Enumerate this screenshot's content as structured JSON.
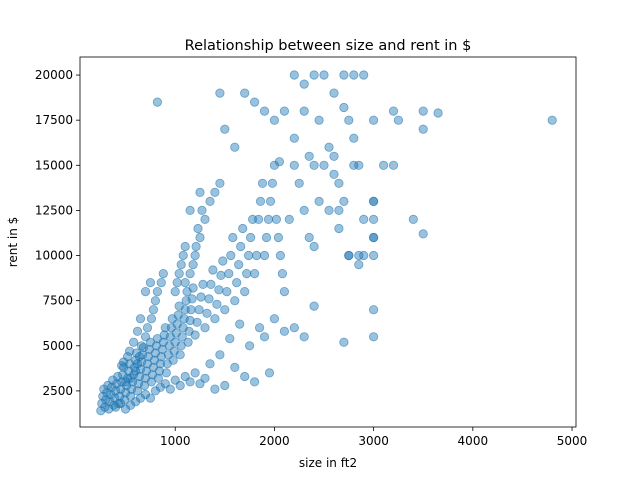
{
  "chart_data": {
    "type": "scatter",
    "title": "Relationship between size and rent in $",
    "xlabel": "size in ft2",
    "ylabel": "rent in $",
    "xlim": [
      40,
      5040
    ],
    "ylim": [
      500,
      21000
    ],
    "xticks": [
      1000,
      2000,
      3000,
      4000,
      5000
    ],
    "yticks": [
      2500,
      5000,
      7500,
      10000,
      12500,
      15000,
      17500,
      20000
    ],
    "grid": false,
    "color": "#1f77b4",
    "alpha": 0.45,
    "series": [
      {
        "points": [
          [
            250,
            1400
          ],
          [
            260,
            1800
          ],
          [
            270,
            2200
          ],
          [
            280,
            2600
          ],
          [
            290,
            1600
          ],
          [
            300,
            2000
          ],
          [
            310,
            2400
          ],
          [
            320,
            2800
          ],
          [
            330,
            1500
          ],
          [
            340,
            1900
          ],
          [
            350,
            2300
          ],
          [
            360,
            2700
          ],
          [
            370,
            3100
          ],
          [
            380,
            1700
          ],
          [
            390,
            2100
          ],
          [
            400,
            2500
          ],
          [
            410,
            2900
          ],
          [
            420,
            3300
          ],
          [
            430,
            1800
          ],
          [
            440,
            2200
          ],
          [
            450,
            2600
          ],
          [
            460,
            3000
          ],
          [
            470,
            3400
          ],
          [
            480,
            3800
          ],
          [
            490,
            2000
          ],
          [
            500,
            2400
          ],
          [
            510,
            2800
          ],
          [
            520,
            3200
          ],
          [
            530,
            3600
          ],
          [
            540,
            4000
          ],
          [
            550,
            2200
          ],
          [
            560,
            2600
          ],
          [
            570,
            3000
          ],
          [
            580,
            3400
          ],
          [
            590,
            3800
          ],
          [
            600,
            4200
          ],
          [
            610,
            4600
          ],
          [
            620,
            2500
          ],
          [
            630,
            2900
          ],
          [
            640,
            3300
          ],
          [
            650,
            3700
          ],
          [
            660,
            4100
          ],
          [
            670,
            4500
          ],
          [
            680,
            4900
          ],
          [
            690,
            2800
          ],
          [
            700,
            3200
          ],
          [
            710,
            3600
          ],
          [
            720,
            4000
          ],
          [
            730,
            4400
          ],
          [
            740,
            4800
          ],
          [
            750,
            5200
          ],
          [
            760,
            3000
          ],
          [
            770,
            3400
          ],
          [
            780,
            3800
          ],
          [
            790,
            4200
          ],
          [
            800,
            4600
          ],
          [
            810,
            5000
          ],
          [
            820,
            5400
          ],
          [
            830,
            3200
          ],
          [
            840,
            3600
          ],
          [
            850,
            4000
          ],
          [
            860,
            4400
          ],
          [
            870,
            4800
          ],
          [
            880,
            5200
          ],
          [
            890,
            5600
          ],
          [
            900,
            6000
          ],
          [
            910,
            3500
          ],
          [
            920,
            4000
          ],
          [
            930,
            4500
          ],
          [
            940,
            5000
          ],
          [
            950,
            5500
          ],
          [
            960,
            6000
          ],
          [
            970,
            6500
          ],
          [
            980,
            4200
          ],
          [
            990,
            4700
          ],
          [
            1000,
            5200
          ],
          [
            1010,
            5700
          ],
          [
            1020,
            6200
          ],
          [
            1030,
            6700
          ],
          [
            1040,
            7200
          ],
          [
            1050,
            4500
          ],
          [
            1060,
            5000
          ],
          [
            1070,
            5500
          ],
          [
            1080,
            6000
          ],
          [
            1090,
            6500
          ],
          [
            1100,
            7000
          ],
          [
            1110,
            7500
          ],
          [
            1120,
            8000
          ],
          [
            1130,
            5200
          ],
          [
            1140,
            5800
          ],
          [
            1150,
            6400
          ],
          [
            1160,
            7000
          ],
          [
            1170,
            7600
          ],
          [
            1180,
            8200
          ],
          [
            1200,
            5600
          ],
          [
            1220,
            6300
          ],
          [
            1240,
            7000
          ],
          [
            1260,
            7700
          ],
          [
            1280,
            8400
          ],
          [
            1300,
            6000
          ],
          [
            1320,
            6800
          ],
          [
            1340,
            7600
          ],
          [
            1360,
            8400
          ],
          [
            1380,
            9200
          ],
          [
            1400,
            6500
          ],
          [
            1420,
            7300
          ],
          [
            1440,
            8100
          ],
          [
            1460,
            8900
          ],
          [
            1480,
            9700
          ],
          [
            1500,
            7000
          ],
          [
            1520,
            8000
          ],
          [
            1540,
            9000
          ],
          [
            1560,
            10000
          ],
          [
            1580,
            11000
          ],
          [
            1600,
            7500
          ],
          [
            1620,
            8500
          ],
          [
            1640,
            9500
          ],
          [
            1660,
            10500
          ],
          [
            1680,
            11500
          ],
          [
            1700,
            8000
          ],
          [
            1720,
            9000
          ],
          [
            1740,
            10000
          ],
          [
            1760,
            11000
          ],
          [
            1780,
            12000
          ],
          [
            1800,
            9000
          ],
          [
            1820,
            10000
          ],
          [
            1840,
            12000
          ],
          [
            1860,
            13000
          ],
          [
            1880,
            14000
          ],
          [
            1900,
            10000
          ],
          [
            1920,
            11000
          ],
          [
            1940,
            12000
          ],
          [
            1960,
            13000
          ],
          [
            1980,
            14000
          ],
          [
            2000,
            15000
          ],
          [
            2020,
            12000
          ],
          [
            2040,
            11000
          ],
          [
            2060,
            10000
          ],
          [
            2080,
            9000
          ],
          [
            2100,
            8000
          ],
          [
            2150,
            12000
          ],
          [
            2200,
            15000
          ],
          [
            2250,
            14000
          ],
          [
            2300,
            12500
          ],
          [
            2350,
            11000
          ],
          [
            2400,
            10500
          ],
          [
            2450,
            13000
          ],
          [
            2500,
            15000
          ],
          [
            2550,
            12500
          ],
          [
            2600,
            14500
          ],
          [
            2650,
            11500
          ],
          [
            2700,
            13000
          ],
          [
            2750,
            10000
          ],
          [
            2800,
            15000
          ],
          [
            2850,
            9500
          ],
          [
            2900,
            10000
          ],
          [
            3000,
            11000
          ],
          [
            3000,
            7000
          ],
          [
            3000,
            5500
          ],
          [
            3000,
            13000
          ],
          [
            1950,
            3500
          ],
          [
            1800,
            3000
          ],
          [
            1700,
            3300
          ],
          [
            1600,
            3800
          ],
          [
            1500,
            2800
          ],
          [
            1400,
            2600
          ],
          [
            1300,
            3200
          ],
          [
            1250,
            2900
          ],
          [
            1350,
            4000
          ],
          [
            1450,
            4500
          ],
          [
            2100,
            5800
          ],
          [
            2200,
            6000
          ],
          [
            2300,
            5500
          ],
          [
            2400,
            7200
          ],
          [
            2000,
            6500
          ],
          [
            1900,
            5500
          ],
          [
            1850,
            6000
          ],
          [
            1750,
            5000
          ],
          [
            1650,
            6200
          ],
          [
            1550,
            5400
          ],
          [
            2700,
            5200
          ],
          [
            2100,
            18000
          ],
          [
            2200,
            20000
          ],
          [
            2300,
            19500
          ],
          [
            2400,
            20000
          ],
          [
            2500,
            20000
          ],
          [
            2600,
            19000
          ],
          [
            2700,
            20000
          ],
          [
            2800,
            20000
          ],
          [
            2900,
            20000
          ],
          [
            820,
            18500
          ],
          [
            1450,
            19000
          ],
          [
            1700,
            19000
          ],
          [
            1800,
            18500
          ],
          [
            1900,
            18000
          ],
          [
            2000,
            17500
          ],
          [
            1500,
            17000
          ],
          [
            1600,
            16000
          ],
          [
            2300,
            18000
          ],
          [
            2700,
            18200
          ],
          [
            2750,
            17500
          ],
          [
            2800,
            16500
          ],
          [
            3000,
            17500
          ],
          [
            3200,
            18000
          ],
          [
            3250,
            17500
          ],
          [
            3500,
            18000
          ],
          [
            3500,
            17000
          ],
          [
            3650,
            17900
          ],
          [
            4800,
            17500
          ],
          [
            2450,
            17500
          ],
          [
            2600,
            15500
          ],
          [
            2400,
            15000
          ],
          [
            3100,
            15000
          ],
          [
            3200,
            15000
          ],
          [
            2850,
            15000
          ],
          [
            2550,
            16000
          ],
          [
            2650,
            14000
          ],
          [
            2350,
            15500
          ],
          [
            2200,
            16500
          ],
          [
            2050,
            15200
          ],
          [
            3000,
            11000
          ],
          [
            3000,
            10000
          ],
          [
            3000,
            12000
          ],
          [
            3400,
            12000
          ],
          [
            3500,
            11200
          ],
          [
            2750,
            10000
          ],
          [
            2850,
            10000
          ],
          [
            2900,
            12000
          ],
          [
            3000,
            13000
          ],
          [
            2650,
            12500
          ],
          [
            400,
            1600
          ],
          [
            450,
            1800
          ],
          [
            500,
            1500
          ],
          [
            550,
            1700
          ],
          [
            600,
            1900
          ],
          [
            650,
            2100
          ],
          [
            700,
            2300
          ],
          [
            750,
            2100
          ],
          [
            800,
            2500
          ],
          [
            850,
            2700
          ],
          [
            900,
            2900
          ],
          [
            950,
            2600
          ],
          [
            1000,
            3100
          ],
          [
            1050,
            2800
          ],
          [
            1100,
            3300
          ],
          [
            1150,
            3000
          ],
          [
            1200,
            3500
          ],
          [
            500,
            3000
          ],
          [
            550,
            3200
          ],
          [
            600,
            3600
          ],
          [
            620,
            4000
          ],
          [
            640,
            4400
          ],
          [
            660,
            5000
          ],
          [
            700,
            5500
          ],
          [
            720,
            6000
          ],
          [
            760,
            6500
          ],
          [
            780,
            7000
          ],
          [
            800,
            7500
          ],
          [
            820,
            8000
          ],
          [
            860,
            8500
          ],
          [
            880,
            9000
          ],
          [
            700,
            8000
          ],
          [
            750,
            8500
          ],
          [
            650,
            6500
          ],
          [
            620,
            5800
          ],
          [
            580,
            5200
          ],
          [
            540,
            4700
          ],
          [
            520,
            4400
          ],
          [
            480,
            4100
          ],
          [
            460,
            3900
          ],
          [
            1000,
            8000
          ],
          [
            1020,
            8500
          ],
          [
            1040,
            9000
          ],
          [
            1060,
            9500
          ],
          [
            1080,
            10000
          ],
          [
            1100,
            10500
          ],
          [
            1200,
            10000
          ],
          [
            1250,
            11000
          ],
          [
            1300,
            12000
          ],
          [
            1350,
            13000
          ],
          [
            1400,
            13500
          ],
          [
            1450,
            14000
          ],
          [
            1150,
            12500
          ],
          [
            1250,
            13500
          ],
          [
            1100,
            8500
          ],
          [
            1150,
            9000
          ],
          [
            1180,
            9500
          ],
          [
            1210,
            10500
          ],
          [
            1230,
            11500
          ],
          [
            1270,
            12500
          ]
        ]
      }
    ]
  }
}
